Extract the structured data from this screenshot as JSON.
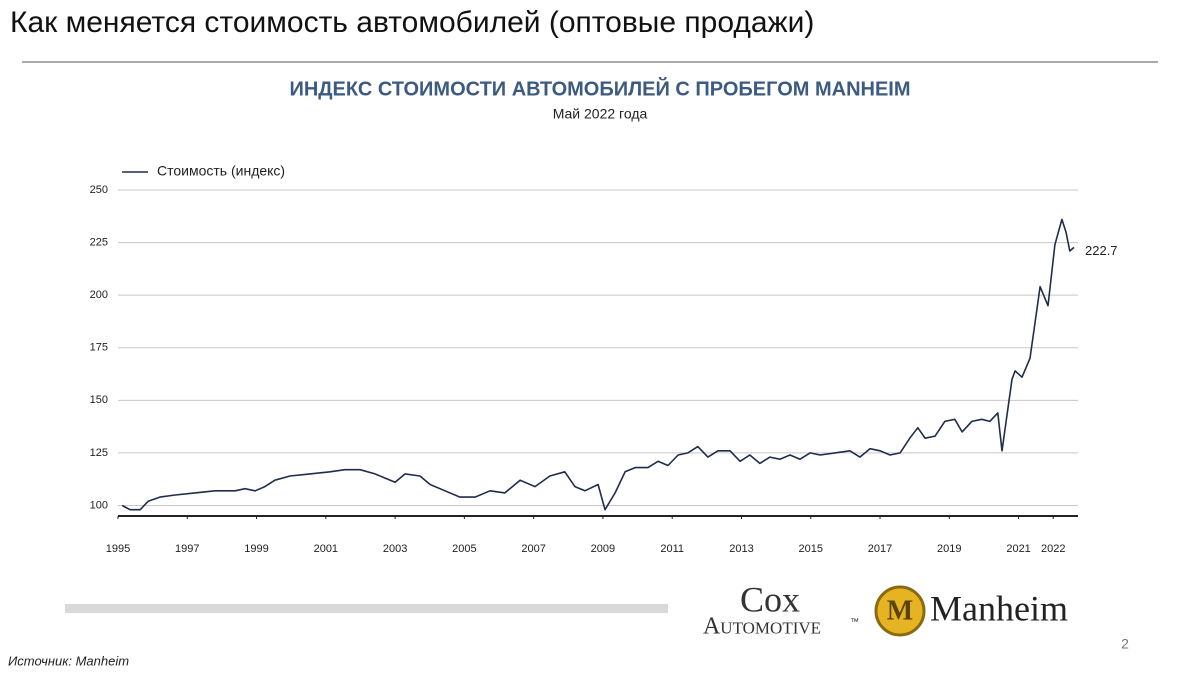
{
  "header": {
    "title": "Как меняется стоимость автомобилей (оптовые продажи)"
  },
  "chart_data": {
    "type": "line",
    "title": "ИНДЕКС СТОИМОСТИ АВТОМОБИЛЕЙ С ПРОБЕГОМ MANHEIM",
    "subtitle": "Май 2022 года",
    "x": [
      1995.12,
      1995.35,
      1995.64,
      1995.87,
      1996.21,
      1996.65,
      1997.22,
      1997.8,
      1998.38,
      1998.67,
      1998.96,
      1999.24,
      1999.53,
      1999.97,
      2000.54,
      2001.12,
      2001.55,
      2001.99,
      2002.42,
      2002.71,
      2003.0,
      2003.29,
      2003.72,
      2004.01,
      2004.44,
      2004.87,
      2005.31,
      2005.74,
      2006.17,
      2006.61,
      2007.04,
      2007.47,
      2007.9,
      2008.19,
      2008.48,
      2008.86,
      2009.06,
      2009.35,
      2009.64,
      2009.93,
      2010.3,
      2010.59,
      2010.88,
      2011.17,
      2011.45,
      2011.74,
      2012.03,
      2012.32,
      2012.67,
      2012.96,
      2013.24,
      2013.53,
      2013.82,
      2014.11,
      2014.4,
      2014.69,
      2014.98,
      2015.27,
      2015.7,
      2016.13,
      2016.42,
      2016.71,
      2017.0,
      2017.29,
      2017.58,
      2017.86,
      2018.09,
      2018.3,
      2018.59,
      2018.87,
      2019.16,
      2019.37,
      2019.65,
      2019.94,
      2020.17,
      2020.4,
      2020.52,
      2020.81,
      2020.9,
      2021.1,
      2021.33,
      2021.62,
      2021.85,
      2022.05,
      2022.25,
      2022.37,
      2022.48,
      2022.6
    ],
    "series": [
      {
        "name": "Стоимость (индекс)",
        "color": "#1f2d4d",
        "values": [
          100,
          98,
          98,
          102,
          104,
          105,
          106,
          107,
          107,
          108,
          107,
          109,
          112,
          114,
          115,
          116,
          117,
          117,
          115,
          113,
          111,
          115,
          114,
          110,
          107,
          104,
          104,
          107,
          106,
          112,
          109,
          114,
          116,
          109,
          107,
          110,
          98,
          106,
          116,
          118,
          118,
          121,
          119,
          124,
          125,
          128,
          123,
          126,
          126,
          121,
          124,
          120,
          123,
          122,
          124,
          122,
          125,
          124,
          125,
          126,
          123,
          127,
          126,
          124,
          125,
          132,
          137,
          132,
          133,
          140,
          141,
          135,
          140,
          141,
          140,
          144,
          126,
          160,
          164,
          161,
          170,
          204,
          195,
          224,
          236,
          230,
          221,
          222.7
        ]
      }
    ],
    "xlim": [
      1995,
      2022.6
    ],
    "xticks": [
      1995,
      1997,
      1999,
      2001,
      2003,
      2005,
      2007,
      2009,
      2011,
      2013,
      2015,
      2017,
      2019,
      2021,
      2022
    ],
    "ylim": [
      95,
      250
    ],
    "yticks": [
      100,
      125,
      150,
      175,
      200,
      225,
      250
    ],
    "grid": true,
    "legend": "top-left"
  },
  "logos": {
    "cox": "Cox",
    "automotive": "Automotive",
    "tm": "™",
    "manheim": "Manheim",
    "badge": "M"
  },
  "page_number": "2",
  "source": "Источник: Manheim"
}
